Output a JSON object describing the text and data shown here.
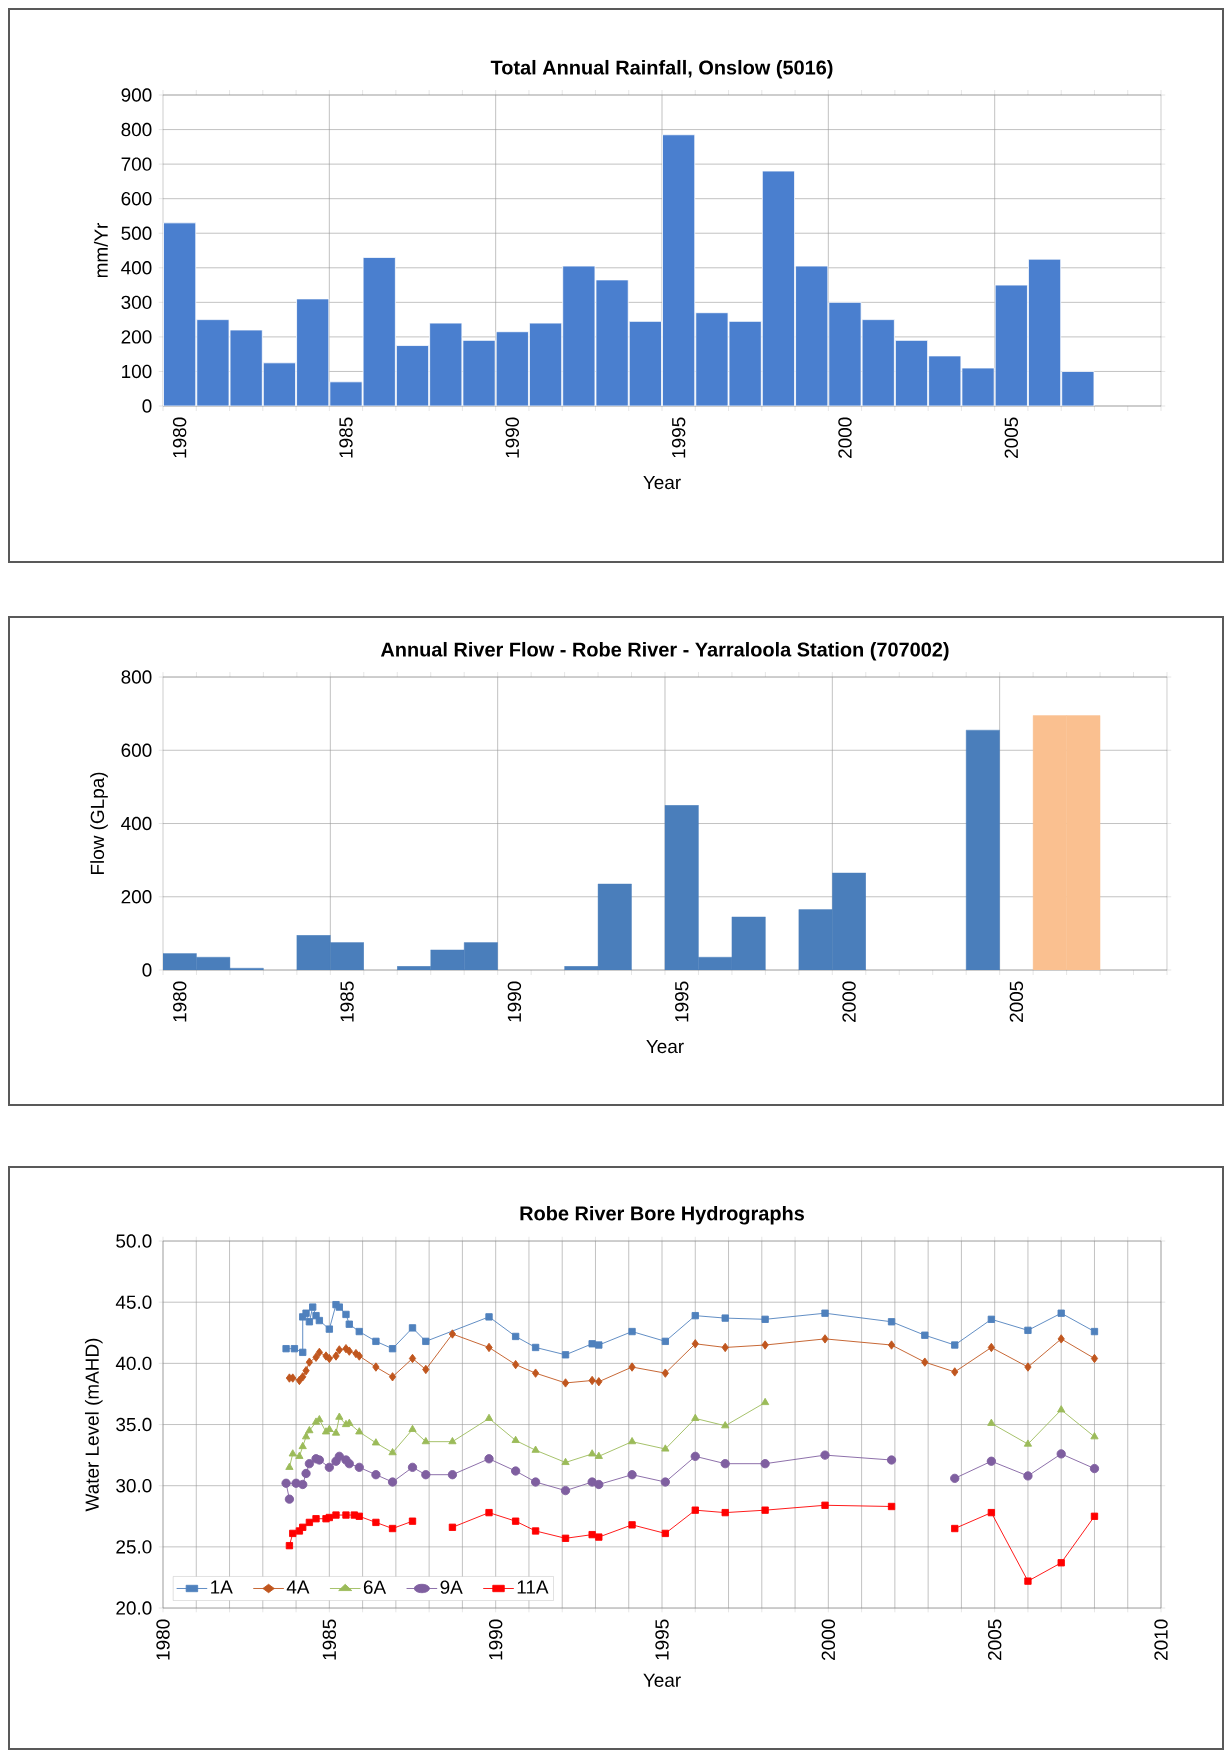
{
  "chart_data": [
    {
      "type": "bar",
      "title": "Total Annual Rainfall, Onslow (5016)",
      "xlabel": "Year",
      "ylabel": "mm/Yr",
      "categories": [
        "1980",
        null,
        null,
        null,
        null,
        "1985",
        null,
        null,
        null,
        null,
        "1990",
        null,
        null,
        null,
        null,
        "1995",
        null,
        null,
        null,
        null,
        "2000",
        null,
        null,
        null,
        null,
        "2005",
        null,
        null,
        null,
        null
      ],
      "values": [
        530,
        250,
        220,
        125,
        310,
        70,
        430,
        175,
        240,
        190,
        215,
        240,
        405,
        365,
        245,
        785,
        270,
        245,
        680,
        405,
        300,
        250,
        190,
        145,
        110,
        350,
        425,
        100,
        null,
        null
      ],
      "color": "#4a7fcf",
      "ylim": [
        0,
        900
      ],
      "yticks": [
        0,
        100,
        200,
        300,
        400,
        500,
        600,
        700,
        800,
        900
      ],
      "grid": true
    },
    {
      "type": "bar",
      "title": "Annual River Flow - Robe River - Yarraloola Station (707002)",
      "xlabel": "Year",
      "ylabel": "Flow (GLpa)",
      "categories": [
        "1980",
        null,
        null,
        null,
        null,
        "1985",
        null,
        null,
        null,
        null,
        "1990",
        null,
        null,
        null,
        null,
        "1995",
        null,
        null,
        null,
        null,
        "2000",
        null,
        null,
        null,
        null,
        "2005",
        null,
        null,
        null,
        null
      ],
      "values": [
        45,
        35,
        5,
        null,
        95,
        75,
        null,
        10,
        55,
        75,
        null,
        null,
        10,
        235,
        null,
        450,
        35,
        145,
        null,
        165,
        265,
        null,
        null,
        null,
        655,
        null,
        695,
        695,
        null,
        null
      ],
      "colors": [
        "#4a7ebb",
        "#4a7ebb",
        "#4a7ebb",
        "#4a7ebb",
        "#4a7ebb",
        "#4a7ebb",
        "#4a7ebb",
        "#4a7ebb",
        "#4a7ebb",
        "#4a7ebb",
        "#4a7ebb",
        "#4a7ebb",
        "#4a7ebb",
        "#4a7ebb",
        "#4a7ebb",
        "#4a7ebb",
        "#4a7ebb",
        "#4a7ebb",
        "#4a7ebb",
        "#4a7ebb",
        "#4a7ebb",
        "#4a7ebb",
        "#4a7ebb",
        "#4a7ebb",
        "#4a7ebb",
        "#4a7ebb",
        "#fac090",
        "#fac090",
        "#4a7ebb",
        "#4a7ebb"
      ],
      "ylim": [
        0,
        800
      ],
      "yticks": [
        0,
        200,
        400,
        600,
        800
      ],
      "grid": true
    },
    {
      "type": "line",
      "title": "Robe River Bore Hydrographs",
      "xlabel": "Year",
      "ylabel": "Water Level (mAHD)",
      "series": [
        {
          "name": "1A",
          "color": "#4f81bd",
          "marker": "square",
          "x": [
            1983.7,
            1983.95,
            1984.2,
            1984.2,
            1984.3,
            1984.4,
            1984.5,
            1984.6,
            1984.7,
            1985.0,
            1985.2,
            1985.3,
            1985.5,
            1985.6,
            1985.9,
            1986.4,
            1986.9,
            1987.5,
            1987.9,
            1989.8,
            1990.6,
            1991.2,
            1992.1,
            1992.9,
            1993.1,
            1994.1,
            1995.1,
            1996.0,
            1996.9,
            1998.1,
            1999.9,
            2001.9,
            2002.9,
            2003.8,
            2004.9,
            2006.0,
            2007.0,
            2008.0
          ],
          "values": [
            41.2,
            41.2,
            40.9,
            43.8,
            44.1,
            43.4,
            44.6,
            43.9,
            43.5,
            42.8,
            44.8,
            44.6,
            44.0,
            43.2,
            42.6,
            41.8,
            41.2,
            42.9,
            41.8,
            43.8,
            42.2,
            41.3,
            40.7,
            41.6,
            41.5,
            42.6,
            41.8,
            43.9,
            43.7,
            43.6,
            44.1,
            43.4,
            42.3,
            41.5,
            43.6,
            42.7,
            44.1,
            42.6
          ]
        },
        {
          "name": "4A",
          "color": "#c0561e",
          "marker": "diamond",
          "x": [
            1983.8,
            1983.9,
            1984.1,
            1984.2,
            1984.3,
            1984.4,
            1984.6,
            1984.7,
            1984.9,
            1985.0,
            1985.2,
            1985.3,
            1985.5,
            1985.6,
            1985.8,
            1985.9,
            1986.4,
            1986.9,
            1987.5,
            1987.9,
            1988.7,
            1989.8,
            1990.6,
            1991.2,
            1992.1,
            1992.9,
            1993.1,
            1994.1,
            1995.1,
            1996.0,
            1996.9,
            1998.1,
            1999.9,
            2001.9,
            2002.9,
            2003.8,
            2004.9,
            2006.0,
            2007.0,
            2008.0
          ],
          "values": [
            38.8,
            38.8,
            38.6,
            38.9,
            39.4,
            40.1,
            40.5,
            40.9,
            40.6,
            40.4,
            40.6,
            41.1,
            41.2,
            41.0,
            40.8,
            40.6,
            39.7,
            38.9,
            40.4,
            39.5,
            42.4,
            41.3,
            39.9,
            39.2,
            38.4,
            38.6,
            38.5,
            39.7,
            39.2,
            41.6,
            41.3,
            41.5,
            42.0,
            41.5,
            40.1,
            39.3,
            41.3,
            39.7,
            42.0,
            40.4
          ]
        },
        {
          "name": "6A",
          "color": "#9bbb59",
          "marker": "triangle",
          "x": [
            1983.8,
            1983.9,
            1984.1,
            1984.2,
            1984.3,
            1984.4,
            1984.6,
            1984.7,
            1984.9,
            1985.0,
            1985.2,
            1985.3,
            1985.5,
            1985.6,
            1985.9,
            1986.4,
            1986.9,
            1987.5,
            1987.9,
            1988.7,
            1989.8,
            1990.6,
            1991.2,
            1992.1,
            1992.9,
            1993.1,
            1994.1,
            1995.1,
            1996.0,
            1996.9,
            1998.1,
            2001.0,
            2004.9,
            2006.0,
            2007.0,
            2008.0
          ],
          "values": [
            31.5,
            32.6,
            32.4,
            33.2,
            34.0,
            34.5,
            35.2,
            35.4,
            34.4,
            34.6,
            34.3,
            35.6,
            35.0,
            35.1,
            34.4,
            33.5,
            32.7,
            34.6,
            33.6,
            33.6,
            35.5,
            33.7,
            32.9,
            31.9,
            32.6,
            32.4,
            33.6,
            33.0,
            35.5,
            34.9,
            36.8,
            null,
            35.1,
            33.4,
            36.2,
            34.0
          ]
        },
        {
          "name": "9A",
          "color": "#7f5fa0",
          "marker": "circle",
          "x": [
            1983.8,
            1983.7,
            1984.0,
            1984.2,
            1984.3,
            1984.4,
            1984.6,
            1984.7,
            1985.0,
            1985.2,
            1985.3,
            1985.5,
            1985.6,
            1985.9,
            1986.4,
            1986.9,
            1987.5,
            1987.9,
            1988.7,
            1989.8,
            1990.6,
            1991.2,
            1992.1,
            1992.9,
            1993.1,
            1994.1,
            1995.1,
            1996.0,
            1996.9,
            1998.1,
            1999.9,
            2001.9,
            2002.9,
            2003.8,
            2004.9,
            2006.0,
            2007.0,
            2008.0
          ],
          "values": [
            28.9,
            30.2,
            30.2,
            30.1,
            31.0,
            31.8,
            32.2,
            32.1,
            31.5,
            32.0,
            32.4,
            32.1,
            31.8,
            31.5,
            30.9,
            30.3,
            31.5,
            30.9,
            30.9,
            32.2,
            31.2,
            30.3,
            29.6,
            30.3,
            30.1,
            30.9,
            30.3,
            32.4,
            31.8,
            31.8,
            32.5,
            32.1,
            null,
            30.6,
            32.0,
            30.8,
            32.6,
            31.4
          ]
        },
        {
          "name": "11A",
          "color": "#ff0000",
          "marker": "square",
          "x": [
            1983.8,
            1983.9,
            1984.1,
            1984.2,
            1984.4,
            1984.6,
            1984.9,
            1985.0,
            1985.2,
            1985.5,
            1985.75,
            1985.9,
            1986.4,
            1986.9,
            1987.5,
            1988.1,
            1988.7,
            1989.8,
            1990.6,
            1991.2,
            1992.1,
            1992.9,
            1993.1,
            1994.1,
            1995.1,
            1996.0,
            1996.9,
            1998.1,
            1999.9,
            2001.9,
            2002.9,
            2003.8,
            2004.9,
            2006.0,
            2007.0,
            2008.0
          ],
          "values": [
            25.1,
            26.1,
            26.3,
            26.6,
            27.0,
            27.3,
            27.3,
            27.4,
            27.6,
            27.6,
            27.6,
            27.5,
            27.0,
            26.5,
            27.1,
            null,
            26.6,
            27.8,
            27.1,
            26.3,
            25.7,
            26.0,
            25.8,
            26.8,
            26.1,
            28.0,
            27.8,
            28.0,
            28.4,
            28.3,
            null,
            26.5,
            27.8,
            22.2,
            23.7,
            27.5
          ]
        }
      ],
      "xlim": [
        1980,
        2010
      ],
      "xticks": [
        1980,
        {
          "value": 1981,
          "label": null
        },
        {
          "value": 1982,
          "label": null
        },
        {
          "value": 1983,
          "label": null
        },
        {
          "value": 1984,
          "label": null
        },
        1985,
        {
          "value": 1986,
          "label": null
        },
        {
          "value": 1987,
          "label": null
        },
        {
          "value": 1988,
          "label": null
        },
        {
          "value": 1989,
          "label": null
        },
        1990,
        {
          "value": 1991,
          "label": null
        },
        {
          "value": 1992,
          "label": null
        },
        {
          "value": 1993,
          "label": null
        },
        {
          "value": 1994,
          "label": null
        },
        1995,
        {
          "value": 1996,
          "label": null
        },
        {
          "value": 1997,
          "label": null
        },
        {
          "value": 1998,
          "label": null
        },
        {
          "value": 1999,
          "label": null
        },
        2000,
        {
          "value": 2001,
          "label": null
        },
        {
          "value": 2002,
          "label": null
        },
        {
          "value": 2003,
          "label": null
        },
        {
          "value": 2004,
          "label": null
        },
        2005,
        {
          "value": 2006,
          "label": null
        },
        {
          "value": 2007,
          "label": null
        },
        {
          "value": 2008,
          "label": null
        },
        {
          "value": 2009,
          "label": null
        },
        2010
      ],
      "ylim": [
        20,
        50
      ],
      "yticks": [
        {
          "value": 20,
          "label": "20.0"
        },
        {
          "value": 25,
          "label": "25.0"
        },
        {
          "value": 30,
          "label": "30.0"
        },
        {
          "value": 35,
          "label": "35.0"
        },
        {
          "value": 40,
          "label": "40.0"
        },
        {
          "value": 45,
          "label": "45.0"
        },
        {
          "value": 50,
          "label": "50.0"
        }
      ],
      "grid": true,
      "legend": "bottom"
    }
  ]
}
